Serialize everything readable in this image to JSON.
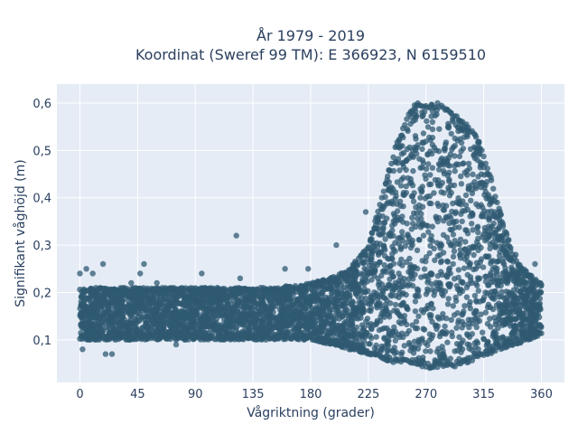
{
  "chart_data": {
    "type": "scatter",
    "title_lines": [
      "År 1979 - 2019",
      "Koordinat (Sweref 99 TM): E 366923, N 6159510"
    ],
    "xlabel": "Vågriktning (grader)",
    "ylabel": "Signifikant våghöjd (m)",
    "xlim": [
      -18,
      378
    ],
    "ylim": [
      0.01,
      0.64
    ],
    "x_ticks": [
      0,
      45,
      90,
      135,
      180,
      225,
      270,
      315,
      360
    ],
    "y_ticks": [
      0.1,
      0.2,
      0.3,
      0.4,
      0.5,
      0.6
    ],
    "y_tick_labels": [
      "0,1",
      "0,2",
      "0,3",
      "0,4",
      "0,5",
      "0,6"
    ],
    "grid": true,
    "marker_color": "#2f5a72",
    "envelope": {
      "x": [
        0,
        30,
        60,
        90,
        120,
        150,
        180,
        195,
        210,
        225,
        235,
        245,
        255,
        262,
        270,
        280,
        290,
        300,
        310,
        320,
        330,
        340,
        350,
        360
      ],
      "y_min": [
        0.1,
        0.1,
        0.1,
        0.1,
        0.1,
        0.1,
        0.1,
        0.09,
        0.08,
        0.07,
        0.06,
        0.05,
        0.05,
        0.05,
        0.04,
        0.04,
        0.04,
        0.05,
        0.06,
        0.07,
        0.08,
        0.09,
        0.1,
        0.11
      ],
      "y_max": [
        0.21,
        0.21,
        0.21,
        0.21,
        0.21,
        0.21,
        0.22,
        0.23,
        0.25,
        0.3,
        0.4,
        0.5,
        0.57,
        0.6,
        0.6,
        0.6,
        0.58,
        0.56,
        0.53,
        0.45,
        0.35,
        0.27,
        0.24,
        0.22
      ]
    },
    "outliers": [
      {
        "x": 0,
        "y": 0.24
      },
      {
        "x": 2,
        "y": 0.08
      },
      {
        "x": 5,
        "y": 0.25
      },
      {
        "x": 10,
        "y": 0.24
      },
      {
        "x": 18,
        "y": 0.26
      },
      {
        "x": 20,
        "y": 0.07
      },
      {
        "x": 25,
        "y": 0.07
      },
      {
        "x": 40,
        "y": 0.22
      },
      {
        "x": 47,
        "y": 0.24
      },
      {
        "x": 50,
        "y": 0.26
      },
      {
        "x": 60,
        "y": 0.22
      },
      {
        "x": 75,
        "y": 0.09
      },
      {
        "x": 95,
        "y": 0.24
      },
      {
        "x": 122,
        "y": 0.32
      },
      {
        "x": 125,
        "y": 0.23
      },
      {
        "x": 160,
        "y": 0.25
      },
      {
        "x": 178,
        "y": 0.25
      },
      {
        "x": 200,
        "y": 0.3
      },
      {
        "x": 223,
        "y": 0.37
      },
      {
        "x": 330,
        "y": 0.32
      },
      {
        "x": 340,
        "y": 0.28
      },
      {
        "x": 355,
        "y": 0.26
      }
    ]
  }
}
